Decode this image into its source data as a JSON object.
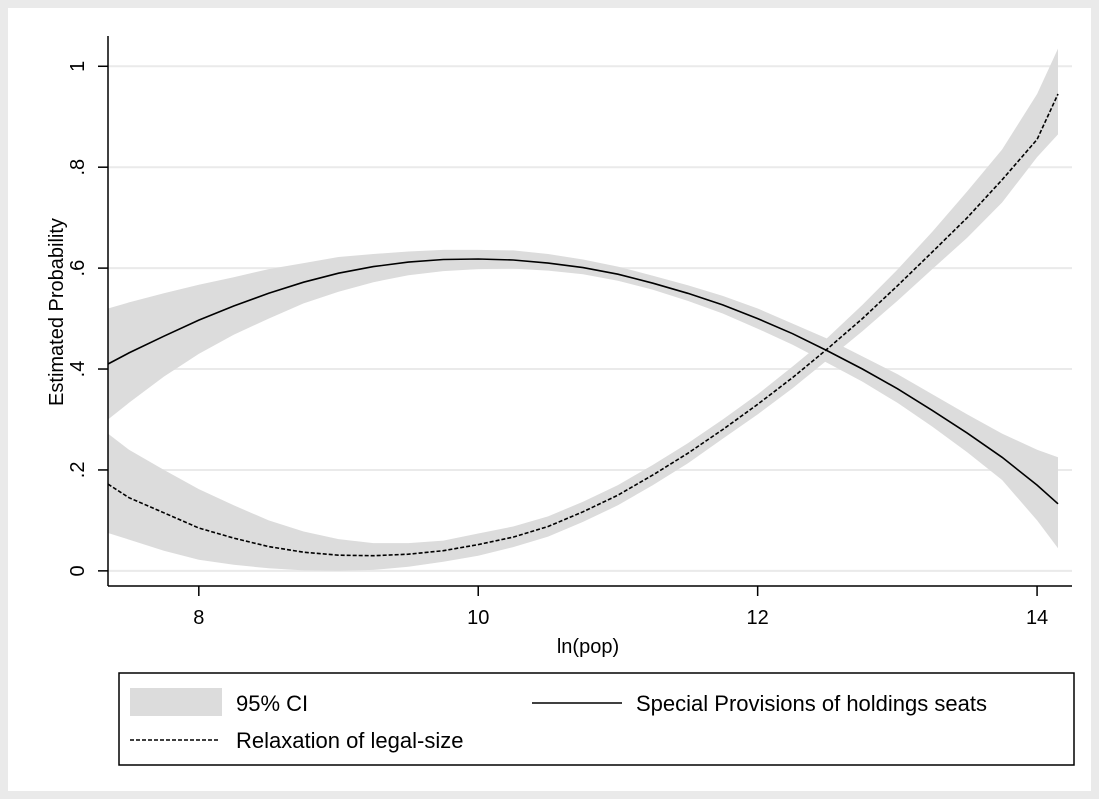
{
  "chart_data": {
    "type": "line",
    "xlabel": "ln(pop)",
    "ylabel": "Estimated Probability",
    "xlim": [
      7.35,
      14.25
    ],
    "ylim": [
      -0.03,
      1.06
    ],
    "x_ticks": [
      8,
      10,
      12,
      14
    ],
    "x_tick_labels": [
      "8",
      "10",
      "12",
      "14"
    ],
    "y_ticks": [
      0,
      0.2,
      0.4,
      0.6,
      0.8,
      1
    ],
    "y_tick_labels": [
      "0",
      ".2",
      ".4",
      ".6",
      ".8",
      "1"
    ],
    "grid": true,
    "legend_position": "bottom",
    "legend": {
      "ci_label": "95% CI",
      "special_label": "Special Provisions of holdings seats",
      "relax_label": "Relaxation of legal-size"
    },
    "colors": {
      "ci_band": "#dcdcdc",
      "line": "#000000",
      "plot_background": "#ffffff",
      "outer_background": "#eaeaea",
      "gridline": "#eaeaea"
    },
    "series": [
      {
        "name": "Special Provisions of holdings seats",
        "style": "solid",
        "x": [
          7.35,
          7.5,
          7.75,
          8.0,
          8.25,
          8.5,
          8.75,
          9.0,
          9.25,
          9.5,
          9.75,
          10.0,
          10.25,
          10.5,
          10.75,
          11.0,
          11.25,
          11.5,
          11.75,
          12.0,
          12.25,
          12.5,
          12.75,
          13.0,
          13.25,
          13.5,
          13.75,
          14.0,
          14.15
        ],
        "y": [
          0.41,
          0.432,
          0.465,
          0.497,
          0.525,
          0.55,
          0.572,
          0.59,
          0.603,
          0.612,
          0.617,
          0.618,
          0.616,
          0.61,
          0.601,
          0.588,
          0.57,
          0.55,
          0.527,
          0.5,
          0.47,
          0.436,
          0.4,
          0.361,
          0.318,
          0.273,
          0.225,
          0.17,
          0.133
        ],
        "ci_lower": [
          0.3,
          0.333,
          0.385,
          0.43,
          0.468,
          0.5,
          0.53,
          0.553,
          0.572,
          0.586,
          0.594,
          0.598,
          0.599,
          0.595,
          0.588,
          0.575,
          0.557,
          0.535,
          0.51,
          0.48,
          0.448,
          0.412,
          0.375,
          0.333,
          0.286,
          0.235,
          0.18,
          0.1,
          0.045
        ],
        "ci_upper": [
          0.52,
          0.532,
          0.55,
          0.567,
          0.582,
          0.598,
          0.61,
          0.622,
          0.628,
          0.633,
          0.636,
          0.636,
          0.635,
          0.628,
          0.617,
          0.603,
          0.585,
          0.566,
          0.545,
          0.52,
          0.49,
          0.46,
          0.425,
          0.39,
          0.35,
          0.31,
          0.272,
          0.24,
          0.225
        ]
      },
      {
        "name": "Relaxation of legal-size",
        "style": "dashed",
        "x": [
          7.35,
          7.5,
          7.75,
          8.0,
          8.25,
          8.5,
          8.75,
          9.0,
          9.25,
          9.5,
          9.75,
          10.0,
          10.25,
          10.5,
          10.75,
          11.0,
          11.25,
          11.5,
          11.75,
          12.0,
          12.25,
          12.5,
          12.75,
          13.0,
          13.25,
          13.5,
          13.75,
          14.0,
          14.15
        ],
        "y": [
          0.172,
          0.145,
          0.115,
          0.085,
          0.065,
          0.048,
          0.037,
          0.031,
          0.03,
          0.033,
          0.04,
          0.052,
          0.067,
          0.088,
          0.117,
          0.15,
          0.19,
          0.233,
          0.28,
          0.33,
          0.383,
          0.44,
          0.5,
          0.565,
          0.632,
          0.7,
          0.775,
          0.855,
          0.945
        ],
        "ci_lower": [
          0.075,
          0.062,
          0.04,
          0.022,
          0.012,
          0.005,
          0.001,
          0.0,
          0.002,
          0.008,
          0.018,
          0.03,
          0.047,
          0.068,
          0.097,
          0.13,
          0.17,
          0.213,
          0.262,
          0.31,
          0.362,
          0.418,
          0.475,
          0.535,
          0.598,
          0.66,
          0.73,
          0.82,
          0.865
        ],
        "ci_upper": [
          0.272,
          0.24,
          0.2,
          0.162,
          0.13,
          0.1,
          0.078,
          0.063,
          0.055,
          0.055,
          0.06,
          0.074,
          0.088,
          0.108,
          0.137,
          0.17,
          0.21,
          0.253,
          0.3,
          0.35,
          0.405,
          0.462,
          0.527,
          0.597,
          0.672,
          0.752,
          0.835,
          0.945,
          1.035
        ]
      }
    ]
  }
}
